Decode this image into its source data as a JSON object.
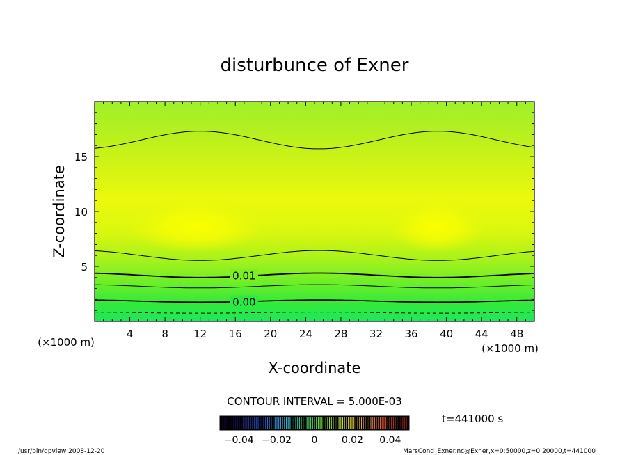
{
  "chart_data": {
    "type": "heatmap",
    "title": "disturbunce of Exner",
    "xlabel": "X-coordinate",
    "ylabel": "Z-coordinate",
    "x_unit_left": "(×1000 m)",
    "x_unit_right": "(×1000 m)",
    "xlim": [
      0,
      50
    ],
    "ylim": [
      0,
      20
    ],
    "x_ticks": [
      4,
      8,
      12,
      16,
      20,
      24,
      28,
      32,
      36,
      40,
      44,
      48
    ],
    "y_ticks": [
      5,
      10,
      15
    ],
    "contour_interval_text": "CONTOUR INTERVAL = 5.000E-03",
    "time_label": "t=441000 s",
    "contour_labels": [
      {
        "text": "0.01",
        "x": 17,
        "z": 4.2
      },
      {
        "text": "0.00",
        "x": 17,
        "z": 1.8
      }
    ],
    "contours": [
      {
        "z": 16.5,
        "amp": 0.8,
        "phase": 12,
        "width": 1,
        "dash": false
      },
      {
        "z": 6.0,
        "amp": -0.45,
        "phase": 12,
        "width": 1,
        "dash": false
      },
      {
        "z": 4.2,
        "amp": -0.2,
        "phase": 12,
        "width": 1.8,
        "dash": false
      },
      {
        "z": 3.2,
        "amp": -0.15,
        "phase": 12,
        "width": 1,
        "dash": false
      },
      {
        "z": 1.85,
        "amp": -0.1,
        "phase": 12,
        "width": 1.8,
        "dash": false
      },
      {
        "z": 0.8,
        "amp": -0.05,
        "phase": 12,
        "width": 1,
        "dash": true
      }
    ],
    "colorbar": {
      "min": -0.05,
      "max": 0.05,
      "tick_values": [
        -0.04,
        -0.02,
        0,
        0.02,
        0.04
      ],
      "tick_labels": [
        "−0.04",
        "−0.02",
        "0",
        "0.02",
        "0.04"
      ]
    },
    "colors": {
      "bottom": "#1ee85a",
      "low_mid": "#33e93a",
      "mid": "#a6f21b",
      "core": "#ecf90c",
      "max": "#fbff00",
      "top": "#a0f02a"
    }
  },
  "footer": {
    "left": "/usr/bin/gpview   2008-12-20",
    "right": "MarsCond_Exner.nc@Exner,x=0:50000,z=0:20000,t=441000"
  }
}
